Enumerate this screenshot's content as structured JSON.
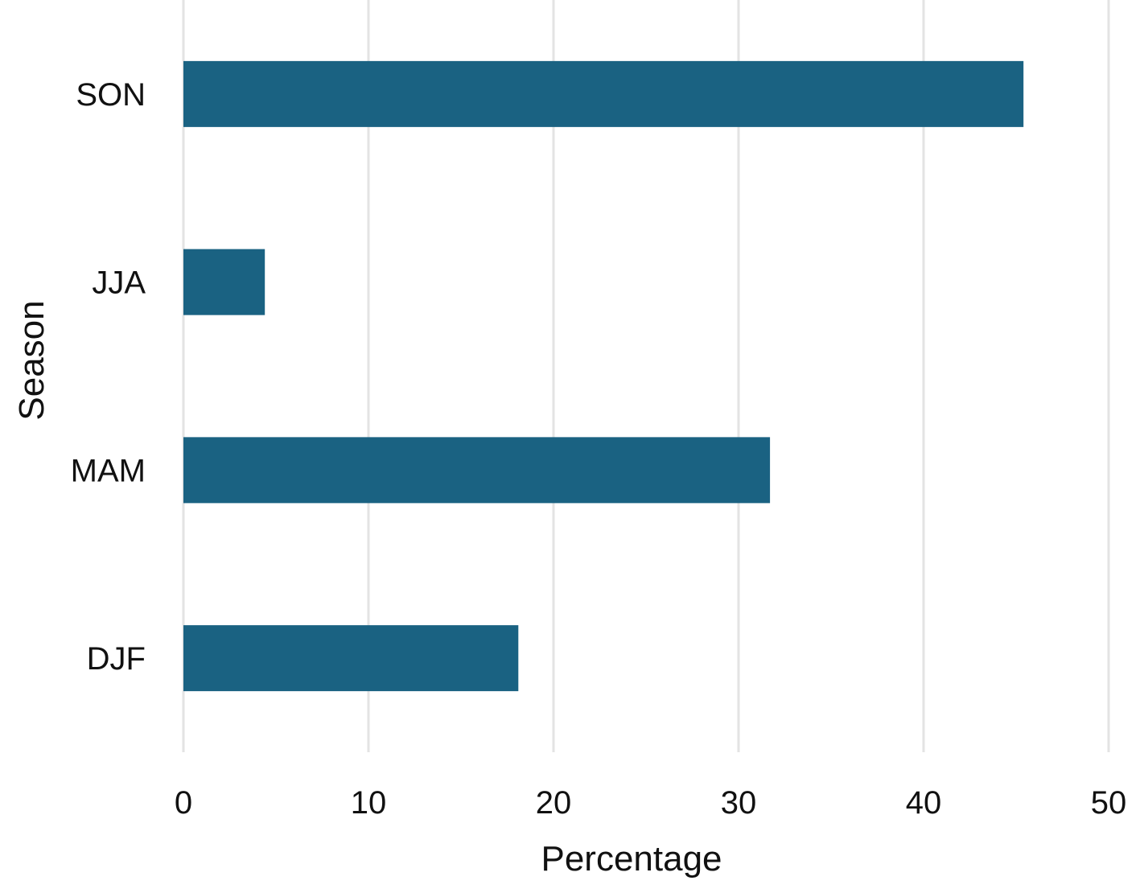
{
  "chart_data": {
    "type": "bar",
    "orientation": "horizontal",
    "categories": [
      "DJF",
      "MAM",
      "JJA",
      "SON"
    ],
    "values": [
      18.1,
      31.7,
      4.4,
      45.4
    ],
    "xlabel": "Percentage",
    "ylabel": "Season",
    "xlim": [
      0,
      50
    ],
    "xticks": [
      "0",
      "10",
      "20",
      "30",
      "40",
      "50"
    ],
    "grid": "vertical",
    "bar_color": "#1a6282"
  }
}
